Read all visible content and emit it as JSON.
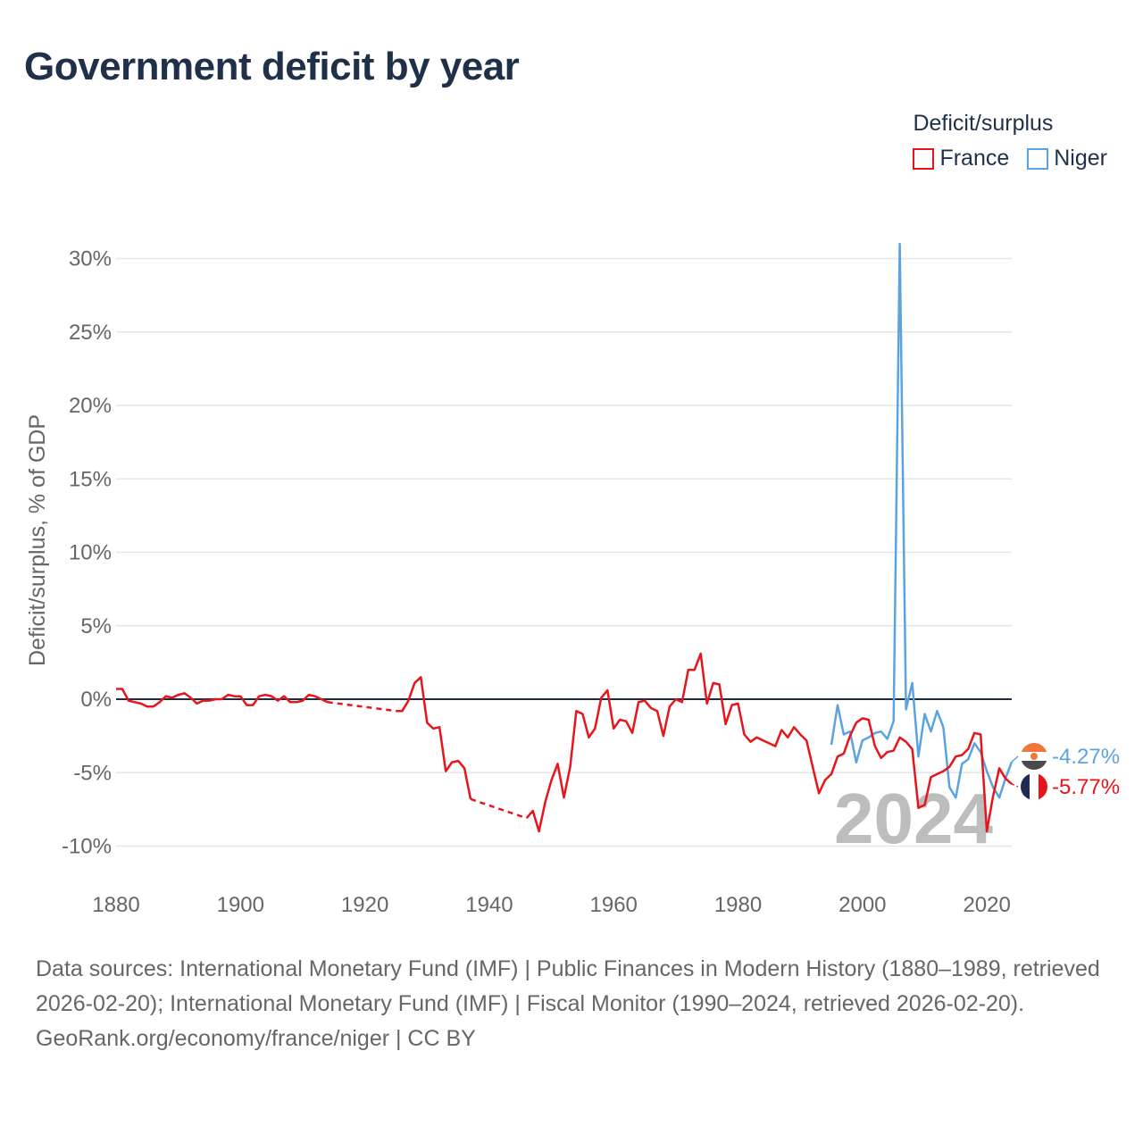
{
  "title": "Government deficit by year",
  "legend": {
    "title": "Deficit/surplus",
    "items": [
      {
        "label": "France",
        "color": "#e8141b"
      },
      {
        "label": "Niger",
        "color": "#5ba3e0"
      }
    ]
  },
  "footer": {
    "sources": "Data sources: International Monetary Fund (IMF) | Public Finances in Modern History (1880–1989, retrieved 2026-02-20); International Monetary Fund (IMF) | Fiscal Monitor (1990–2024, retrieved 2026-02-20).",
    "attribution": "GeoRank.org/economy/france/niger | CC BY"
  },
  "chart_data": {
    "type": "line",
    "title": "Government deficit by year",
    "ylabel": "Deficit/surplus, % of GDP",
    "xlabel": "",
    "xlim": [
      1880,
      2024
    ],
    "ylim": [
      -12,
      31
    ],
    "x_ticks": [
      1880,
      1900,
      1920,
      1940,
      1960,
      1980,
      2000,
      2020
    ],
    "y_ticks": [
      {
        "value": 30,
        "label": "30%"
      },
      {
        "value": 25,
        "label": "25%"
      },
      {
        "value": 20,
        "label": "20%"
      },
      {
        "value": 15,
        "label": "15%"
      },
      {
        "value": 10,
        "label": "10%"
      },
      {
        "value": 5,
        "label": "5%"
      },
      {
        "value": 0,
        "label": "0%"
      },
      {
        "value": -5,
        "label": "-5%"
      },
      {
        "value": -10,
        "label": "-10%"
      }
    ],
    "year_label": "2024",
    "series": [
      {
        "name": "France",
        "color": "#e8141b",
        "end_label": "-5.77%",
        "flag": "france-flag",
        "data": [
          [
            1880,
            0.7
          ],
          [
            1881,
            0.7
          ],
          [
            1882,
            -0.1
          ],
          [
            1883,
            -0.2
          ],
          [
            1884,
            -0.3
          ],
          [
            1885,
            -0.5
          ],
          [
            1886,
            -0.5
          ],
          [
            1887,
            -0.2
          ],
          [
            1888,
            0.2
          ],
          [
            1889,
            0.1
          ],
          [
            1890,
            0.3
          ],
          [
            1891,
            0.4
          ],
          [
            1892,
            0.1
          ],
          [
            1893,
            -0.3
          ],
          [
            1894,
            -0.1
          ],
          [
            1895,
            -0.1
          ],
          [
            1896,
            0.0
          ],
          [
            1897,
            0.0
          ],
          [
            1898,
            0.3
          ],
          [
            1899,
            0.2
          ],
          [
            1900,
            0.2
          ],
          [
            1901,
            -0.4
          ],
          [
            1902,
            -0.4
          ],
          [
            1903,
            0.2
          ],
          [
            1904,
            0.3
          ],
          [
            1905,
            0.2
          ],
          [
            1906,
            -0.1
          ],
          [
            1907,
            0.2
          ],
          [
            1908,
            -0.2
          ],
          [
            1909,
            -0.2
          ],
          [
            1910,
            -0.1
          ],
          [
            1911,
            0.3
          ],
          [
            1912,
            0.2
          ],
          [
            1913,
            0.0
          ],
          [
            1914,
            -0.2
          ],
          [
            1925,
            -0.8
          ],
          [
            1926,
            -0.8
          ],
          [
            1927,
            -0.1
          ],
          [
            1928,
            1.1
          ],
          [
            1929,
            1.5
          ],
          [
            1930,
            -1.6
          ],
          [
            1931,
            -2.0
          ],
          [
            1932,
            -1.9
          ],
          [
            1933,
            -4.9
          ],
          [
            1934,
            -4.3
          ],
          [
            1935,
            -4.2
          ],
          [
            1936,
            -4.7
          ],
          [
            1937,
            -6.8
          ],
          [
            1946,
            -8.1
          ],
          [
            1947,
            -7.6
          ],
          [
            1948,
            -9.0
          ],
          [
            1949,
            -7.0
          ],
          [
            1950,
            -5.5
          ],
          [
            1951,
            -4.4
          ],
          [
            1952,
            -6.7
          ],
          [
            1953,
            -4.6
          ],
          [
            1954,
            -0.8
          ],
          [
            1955,
            -1.0
          ],
          [
            1956,
            -2.6
          ],
          [
            1957,
            -2.0
          ],
          [
            1958,
            0.1
          ],
          [
            1959,
            0.6
          ],
          [
            1960,
            -2.0
          ],
          [
            1961,
            -1.4
          ],
          [
            1962,
            -1.5
          ],
          [
            1963,
            -2.3
          ],
          [
            1964,
            -0.2
          ],
          [
            1965,
            -0.1
          ],
          [
            1966,
            -0.6
          ],
          [
            1967,
            -0.8
          ],
          [
            1968,
            -2.5
          ],
          [
            1969,
            -0.5
          ],
          [
            1970,
            0.0
          ],
          [
            1971,
            -0.2
          ],
          [
            1972,
            2.0
          ],
          [
            1973,
            2.0
          ],
          [
            1974,
            3.1
          ],
          [
            1975,
            -0.3
          ],
          [
            1976,
            1.1
          ],
          [
            1977,
            1.0
          ],
          [
            1978,
            -1.7
          ],
          [
            1979,
            -0.4
          ],
          [
            1980,
            -0.3
          ],
          [
            1981,
            -2.4
          ],
          [
            1982,
            -2.9
          ],
          [
            1983,
            -2.6
          ],
          [
            1984,
            -2.8
          ],
          [
            1985,
            -3.0
          ],
          [
            1986,
            -3.2
          ],
          [
            1987,
            -2.1
          ],
          [
            1988,
            -2.6
          ],
          [
            1989,
            -1.9
          ],
          [
            1990,
            -2.4
          ],
          [
            1991,
            -2.8
          ],
          [
            1992,
            -4.6
          ],
          [
            1993,
            -6.4
          ],
          [
            1994,
            -5.5
          ],
          [
            1995,
            -5.1
          ],
          [
            1996,
            -3.9
          ],
          [
            1997,
            -3.7
          ],
          [
            1998,
            -2.5
          ],
          [
            1999,
            -1.6
          ],
          [
            2000,
            -1.3
          ],
          [
            2001,
            -1.4
          ],
          [
            2002,
            -3.2
          ],
          [
            2003,
            -4.0
          ],
          [
            2004,
            -3.6
          ],
          [
            2005,
            -3.5
          ],
          [
            2006,
            -2.6
          ],
          [
            2007,
            -2.9
          ],
          [
            2008,
            -3.4
          ],
          [
            2009,
            -7.4
          ],
          [
            2010,
            -7.2
          ],
          [
            2011,
            -5.3
          ],
          [
            2012,
            -5.1
          ],
          [
            2013,
            -4.9
          ],
          [
            2014,
            -4.6
          ],
          [
            2015,
            -3.9
          ],
          [
            2016,
            -3.8
          ],
          [
            2017,
            -3.4
          ],
          [
            2018,
            -2.3
          ],
          [
            2019,
            -2.4
          ],
          [
            2020,
            -9.0
          ],
          [
            2021,
            -6.6
          ],
          [
            2022,
            -4.7
          ],
          [
            2023,
            -5.4
          ],
          [
            2024,
            -5.77
          ]
        ],
        "dashed_gaps": [
          [
            1914,
            1925
          ],
          [
            1937,
            1946
          ]
        ]
      },
      {
        "name": "Niger",
        "color": "#5ba3e0",
        "end_label": "-4.27%",
        "flag": "niger-flag",
        "data": [
          [
            1995,
            -3.1
          ],
          [
            1996,
            -0.4
          ],
          [
            1997,
            -2.4
          ],
          [
            1998,
            -2.2
          ],
          [
            1999,
            -4.3
          ],
          [
            2000,
            -2.8
          ],
          [
            2001,
            -2.6
          ],
          [
            2002,
            -2.3
          ],
          [
            2003,
            -2.2
          ],
          [
            2004,
            -2.7
          ],
          [
            2005,
            -1.5
          ],
          [
            2006,
            31.0
          ],
          [
            2007,
            -0.7
          ],
          [
            2008,
            1.1
          ],
          [
            2009,
            -3.9
          ],
          [
            2010,
            -1.0
          ],
          [
            2011,
            -2.2
          ],
          [
            2012,
            -0.8
          ],
          [
            2013,
            -1.9
          ],
          [
            2014,
            -6.0
          ],
          [
            2015,
            -6.7
          ],
          [
            2016,
            -4.4
          ],
          [
            2017,
            -4.1
          ],
          [
            2018,
            -3.0
          ],
          [
            2019,
            -3.6
          ],
          [
            2020,
            -4.9
          ],
          [
            2021,
            -6.0
          ],
          [
            2022,
            -6.7
          ],
          [
            2023,
            -5.4
          ],
          [
            2024,
            -4.27
          ]
        ]
      }
    ]
  }
}
